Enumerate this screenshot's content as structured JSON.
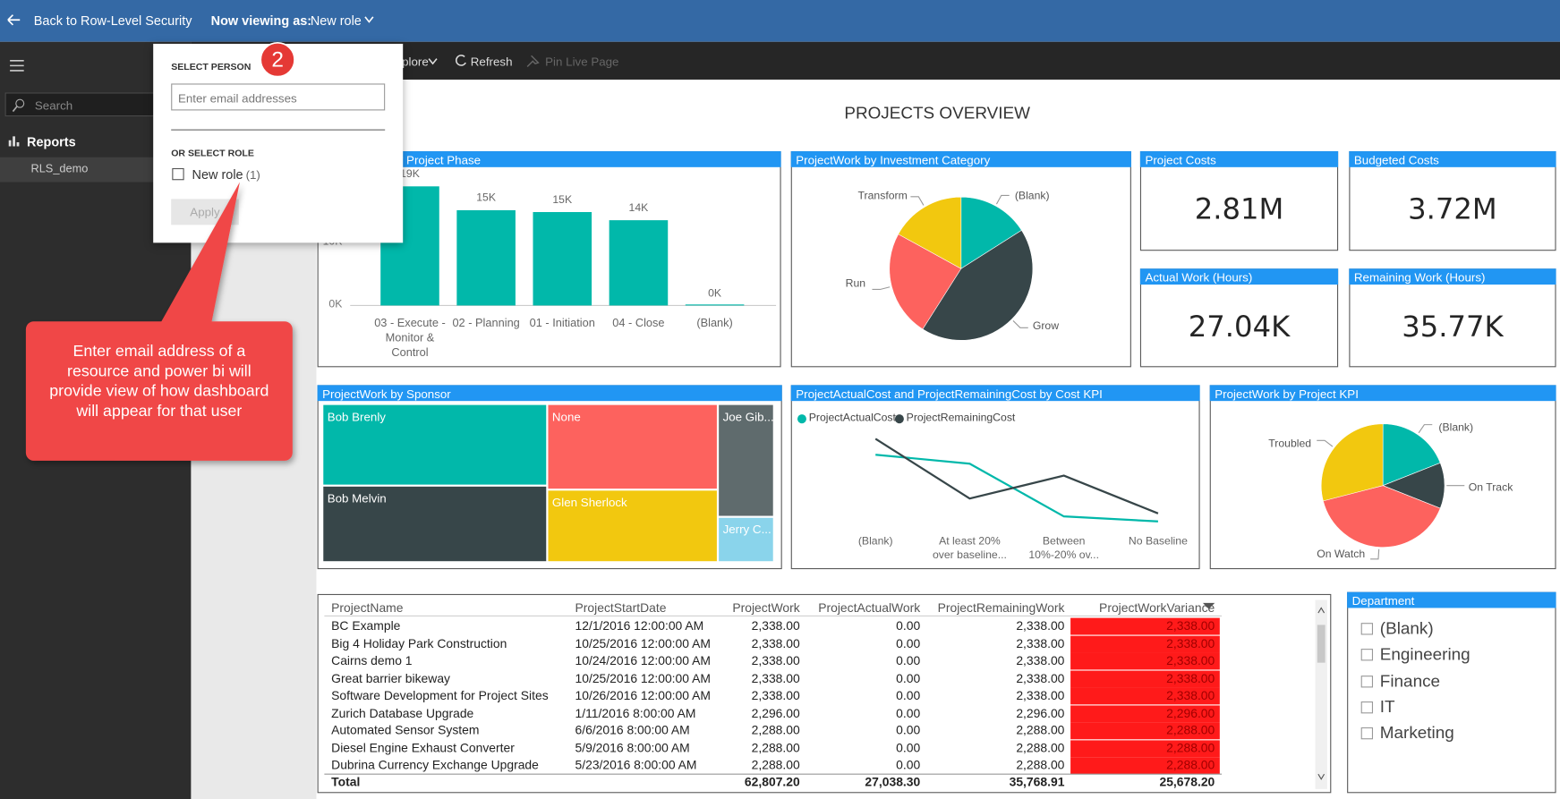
{
  "top_bar": {
    "back": "Back to Row-Level Security",
    "viewing_label": "Now viewing as:",
    "viewing_role": "New role"
  },
  "toolbar": {
    "explore": "plore",
    "refresh": "Refresh",
    "pin": "Pin Live Page"
  },
  "nav": {
    "search": "Search",
    "reports": "Reports",
    "item": "RLS_demo"
  },
  "popup": {
    "select_person": "SELECT PERSON",
    "placeholder": "Enter email addresses",
    "or_select_role": "OR SELECT ROLE",
    "role": "New role",
    "role_count": "(1)",
    "apply": "Apply"
  },
  "step": "2",
  "callout": "Enter email address of a resource and power bi will provide view of how dashboard will appear for that user",
  "dashboard_title": "PROJECTS OVERVIEW",
  "visuals": {
    "phase": {
      "type": "bar",
      "title": "ProjectWork by Project Phase",
      "categories": [
        "03 - Execute - Monitor & Control",
        "02 - Planning",
        "01 - Initiation",
        "04 - Close",
        "(Blank)"
      ],
      "values": [
        19000,
        15200,
        14900,
        13600,
        0
      ],
      "value_labels": [
        "19K",
        "15K",
        "15K",
        "14K",
        "0K"
      ],
      "ylim": [
        0,
        20000
      ],
      "yticks": [
        {
          "value": 0,
          "label": "0K"
        },
        {
          "value": 10000,
          "label": "10K"
        }
      ],
      "color": "#01b8aa"
    },
    "investment": {
      "type": "pie",
      "title": "ProjectWork by Investment Category",
      "slices": [
        {
          "name": "(Blank)",
          "value": 16,
          "color": "#01b8aa"
        },
        {
          "name": "Grow",
          "value": 43,
          "color": "#374649"
        },
        {
          "name": "Run",
          "value": 24,
          "color": "#fd625e"
        },
        {
          "name": "Transform",
          "value": 17,
          "color": "#f2c80f"
        }
      ]
    },
    "cards": [
      {
        "title": "Project Costs",
        "value": "2.81M"
      },
      {
        "title": "Budgeted Costs",
        "value": "3.72M"
      },
      {
        "title": "Actual Work (Hours)",
        "value": "27.04K"
      },
      {
        "title": "Remaining Work (Hours)",
        "value": "35.77K"
      }
    ],
    "sponsor": {
      "type": "treemap",
      "title": "ProjectWork by Sponsor",
      "items": [
        {
          "name": "Bob Brenly",
          "value": 18144,
          "color": "#01b8aa"
        },
        {
          "name": "Bob Melvin",
          "value": 17024,
          "color": "#374649"
        },
        {
          "name": "None",
          "value": 14450,
          "color": "#fd625e"
        },
        {
          "name": "Glen Sherlock",
          "value": 12240,
          "color": "#f2c80f"
        },
        {
          "name": "Joe Gib...",
          "value": 6272,
          "color": "#5f6b6d"
        },
        {
          "name": "Jerry C...",
          "value": 2520,
          "color": "#8ad4eb"
        }
      ]
    },
    "cost_kpi": {
      "type": "line",
      "title": "ProjectActualCost and ProjectRemainingCost by Cost KPI",
      "categories": [
        "(Blank)",
        "At least 20% over baseline...",
        "Between 10%-20% ov...",
        "No Baseline"
      ],
      "series": [
        {
          "name": "ProjectActualCost",
          "color": "#01b8aa",
          "values": [
            123,
            114,
            61,
            56
          ]
        },
        {
          "name": "ProjectRemainingCost",
          "color": "#374649",
          "values": [
            139,
            79,
            102,
            64
          ]
        }
      ]
    },
    "project_kpi": {
      "type": "pie",
      "title": "ProjectWork by Project KPI",
      "slices": [
        {
          "name": "(Blank)",
          "value": 19,
          "color": "#01b8aa"
        },
        {
          "name": "On Track",
          "value": 12,
          "color": "#374649"
        },
        {
          "name": "On Watch",
          "value": 40,
          "color": "#fd625e"
        },
        {
          "name": "Troubled",
          "value": 29,
          "color": "#f2c80f"
        }
      ]
    },
    "table": {
      "columns": [
        "ProjectName",
        "ProjectStartDate",
        "ProjectWork",
        "ProjectActualWork",
        "ProjectRemainingWork",
        "ProjectWorkVariance"
      ],
      "rows": [
        [
          "BC Example",
          "12/1/2016 12:00:00 AM",
          "2,338.00",
          "0.00",
          "2,338.00",
          "2,338.00"
        ],
        [
          "Big 4 Holiday Park Construction",
          "10/25/2016 12:00:00 AM",
          "2,338.00",
          "0.00",
          "2,338.00",
          "2,338.00"
        ],
        [
          "Cairns demo 1",
          "10/24/2016 12:00:00 AM",
          "2,338.00",
          "0.00",
          "2,338.00",
          "2,338.00"
        ],
        [
          "Great barrier bikeway",
          "10/25/2016 12:00:00 AM",
          "2,338.00",
          "0.00",
          "2,338.00",
          "2,338.00"
        ],
        [
          "Software Development for Project Sites",
          "10/26/2016 12:00:00 AM",
          "2,338.00",
          "0.00",
          "2,338.00",
          "2,338.00"
        ],
        [
          "Zurich Database Upgrade",
          "1/11/2016 8:00:00 AM",
          "2,296.00",
          "0.00",
          "2,296.00",
          "2,296.00"
        ],
        [
          "Automated Sensor System",
          "6/6/2016 8:00:00 AM",
          "2,288.00",
          "0.00",
          "2,288.00",
          "2,288.00"
        ],
        [
          "Diesel Engine Exhaust Converter",
          "5/9/2016 8:00:00 AM",
          "2,288.00",
          "0.00",
          "2,288.00",
          "2,288.00"
        ],
        [
          "Dubrina Currency Exchange Upgrade",
          "5/23/2016 8:00:00 AM",
          "2,288.00",
          "0.00",
          "2,288.00",
          "2,288.00"
        ]
      ],
      "total": [
        "Total",
        "",
        "62,807.20",
        "27,038.30",
        "35,768.91",
        "25,678.20"
      ]
    },
    "department": {
      "title": "Department",
      "items": [
        "(Blank)",
        "Engineering",
        "Finance",
        "IT",
        "Marketing"
      ]
    }
  }
}
